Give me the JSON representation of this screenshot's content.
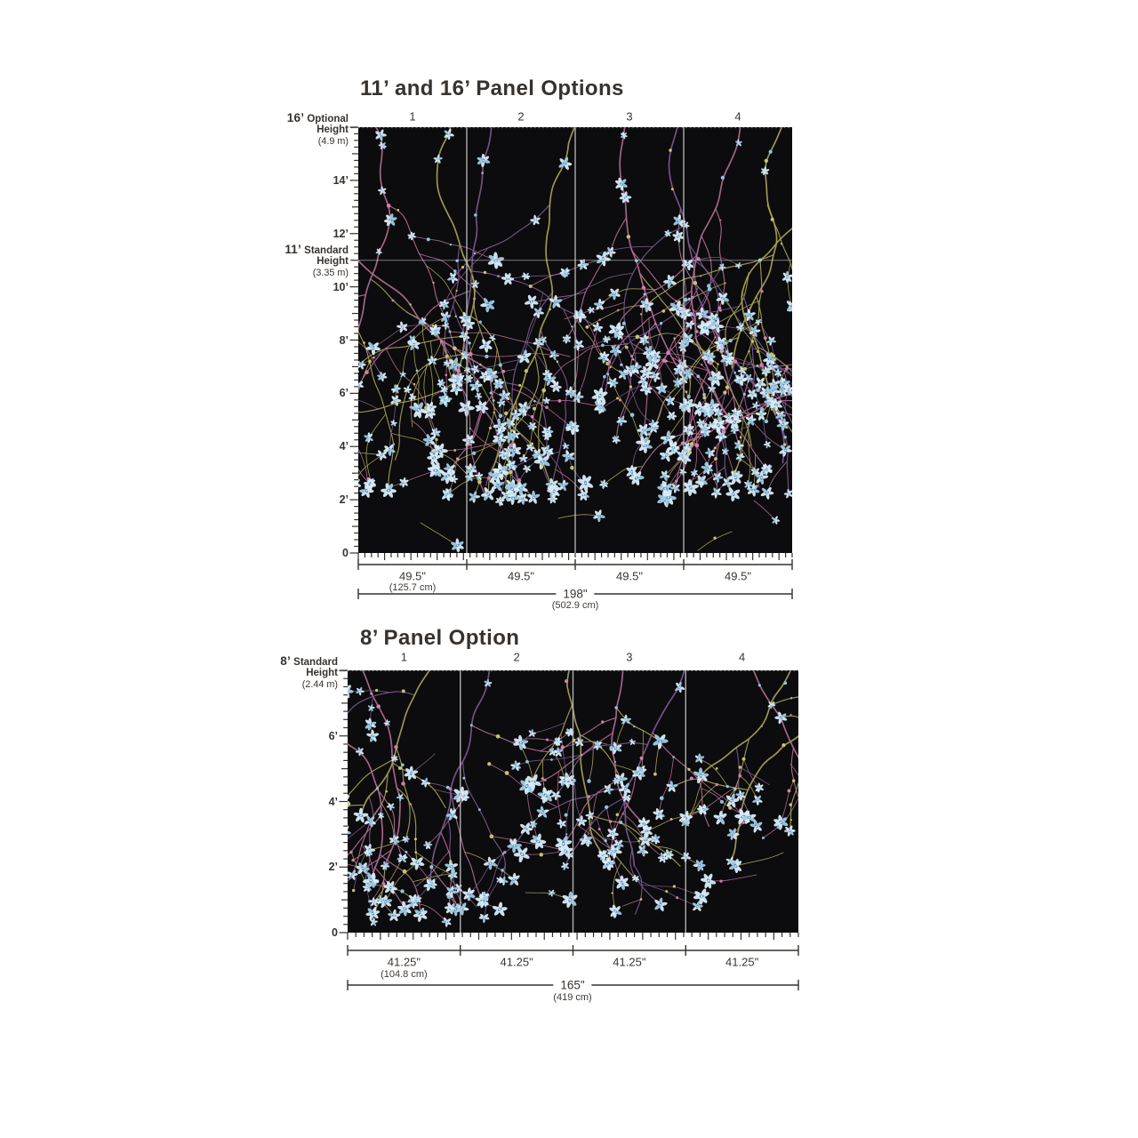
{
  "colors": {
    "text": "#37322e",
    "line": "#35302c",
    "mural_background": "#0c0b0d",
    "seam_line": "#c2c2c2",
    "guide_line": "#d6d6d6",
    "branch_pink": "#b06d92",
    "branch_olive": "#a8a455",
    "branch_purple": "#7a5a8c",
    "flower_light": "#d7ecf8",
    "flower_mid": "#9fcbe4",
    "flower_deep": "#4e86b4",
    "bud_pink": "#d17fb0",
    "bud_yellow": "#c9c36b",
    "bud_blue": "#8fc4e0"
  },
  "diagram_16": {
    "title": "11’ and 16’ Panel Options",
    "panel_numbers": [
      "1",
      "2",
      "3",
      "4"
    ],
    "optional_height_label": {
      "feet": "16’",
      "word1": "Optional",
      "word2": "Height",
      "metric": "(4.9 m)"
    },
    "standard_height_label": {
      "feet": "11’",
      "word1": "Standard",
      "word2": "Height",
      "metric": "(3.35 m)"
    },
    "axis_labels": [
      {
        "text": "14’",
        "feet": 14
      },
      {
        "text": "12’",
        "feet": 12
      },
      {
        "text": "10’",
        "feet": 10
      },
      {
        "text": "8’",
        "feet": 8
      },
      {
        "text": "6’",
        "feet": 6
      },
      {
        "text": "4’",
        "feet": 4
      },
      {
        "text": "2’",
        "feet": 2
      },
      {
        "text": "0",
        "feet": 0
      }
    ],
    "height_feet": 16,
    "standard_line_feet": 11,
    "panel_count": 4,
    "panel_width": {
      "inches": "49.5\"",
      "cm": "(125.7 cm)",
      "inches_value": 49.5
    },
    "total_width": {
      "inches": "198\"",
      "cm": "(502.9 cm)",
      "inches_value": 198
    }
  },
  "diagram_8": {
    "title": "8’ Panel Option",
    "panel_numbers": [
      "1",
      "2",
      "3",
      "4"
    ],
    "standard_height_label": {
      "feet": "8’",
      "word1": "Standard",
      "word2": "Height",
      "metric": "(2.44 m)"
    },
    "axis_labels": [
      {
        "text": "6’",
        "feet": 6
      },
      {
        "text": "4’",
        "feet": 4
      },
      {
        "text": "2’",
        "feet": 2
      },
      {
        "text": "0",
        "feet": 0
      }
    ],
    "height_feet": 8,
    "panel_count": 4,
    "panel_width": {
      "inches": "41.25\"",
      "cm": "(104.8 cm)",
      "inches_value": 41.25
    },
    "total_width": {
      "inches": "165\"",
      "cm": "(419 cm)",
      "inches_value": 165
    }
  }
}
